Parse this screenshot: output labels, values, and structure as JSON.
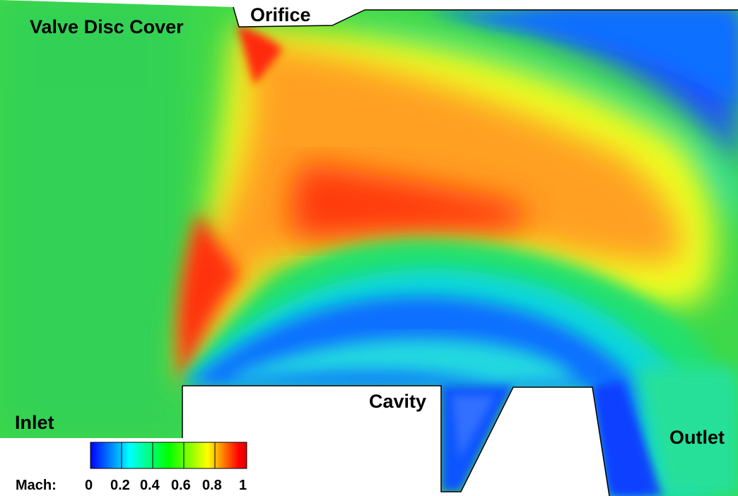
{
  "labels": {
    "valve_disc_cover": "Valve Disc Cover",
    "orifice": "Orifice",
    "cavity": "Cavity",
    "inlet": "Inlet",
    "outlet": "Outlet"
  },
  "colorbar": {
    "title": "Mach:",
    "ticks": [
      "0",
      "0.2",
      "0.4",
      "0.6",
      "0.8",
      "1"
    ],
    "range": [
      0,
      1
    ],
    "colors": [
      "#0000ff",
      "#00ffff",
      "#00ff00",
      "#ffff00",
      "#ff0000"
    ]
  }
}
